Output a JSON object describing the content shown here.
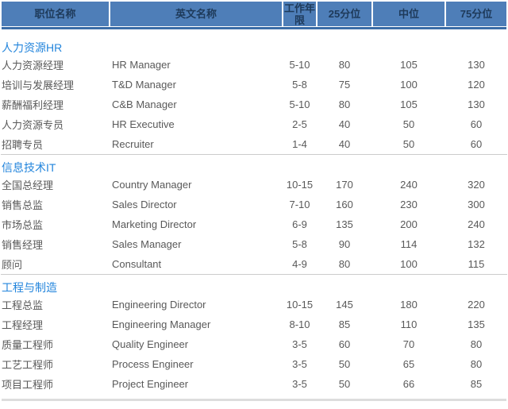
{
  "chart_data": {
    "type": "table",
    "columns": [
      "职位名称",
      "英文名称",
      "工作年限",
      "25分位",
      "中位",
      "75分位"
    ],
    "sections": [
      {
        "name": "人力资源HR",
        "rows": [
          [
            "人力资源经理",
            "HR Manager",
            "5-10",
            "80",
            "105",
            "130"
          ],
          [
            "培训与发展经理",
            "T&D Manager",
            "5-8",
            "75",
            "100",
            "120"
          ],
          [
            "薪酬福利经理",
            "C&B Manager",
            "5-10",
            "80",
            "105",
            "130"
          ],
          [
            "人力资源专员",
            "HR Executive",
            "2-5",
            "40",
            "50",
            "60"
          ],
          [
            "招聘专员",
            "Recruiter",
            "1-4",
            "40",
            "50",
            "60"
          ]
        ]
      },
      {
        "name": "信息技术IT",
        "rows": [
          [
            "全国总经理",
            "Country Manager",
            "10-15",
            "170",
            "240",
            "320"
          ],
          [
            "销售总监",
            "Sales Director",
            "7-10",
            "160",
            "230",
            "300"
          ],
          [
            "市场总监",
            "Marketing Director",
            "6-9",
            "135",
            "200",
            "240"
          ],
          [
            "销售经理",
            "Sales Manager",
            "5-8",
            "90",
            "114",
            "132"
          ],
          [
            "顾问",
            "Consultant",
            "4-9",
            "80",
            "100",
            "115"
          ]
        ]
      },
      {
        "name": "工程与制造",
        "rows": [
          [
            "工程总监",
            "Engineering Director",
            "10-15",
            "145",
            "180",
            "220"
          ],
          [
            "工程经理",
            "Engineering Manager",
            "8-10",
            "85",
            "110",
            "135"
          ],
          [
            "质量工程师",
            "Quality Engineer",
            "3-5",
            "60",
            "70",
            "80"
          ],
          [
            "工艺工程师",
            "Process Engineer",
            "3-5",
            "50",
            "65",
            "80"
          ],
          [
            "项目工程师",
            "Project Engineer",
            "3-5",
            "50",
            "66",
            "85"
          ]
        ]
      }
    ],
    "layout": {
      "grid": "off",
      "header_style": "steel-blue header band with white cell separators",
      "section_dividers": true,
      "legend_position": "none"
    }
  },
  "colors": {
    "header_bg": "#4e7eb8",
    "header_underline": "#3a6ca6",
    "header_text": "#1e3a5a",
    "section_title_text": "#2385dc",
    "body_text": "#595959",
    "divider": "#cccccc"
  }
}
